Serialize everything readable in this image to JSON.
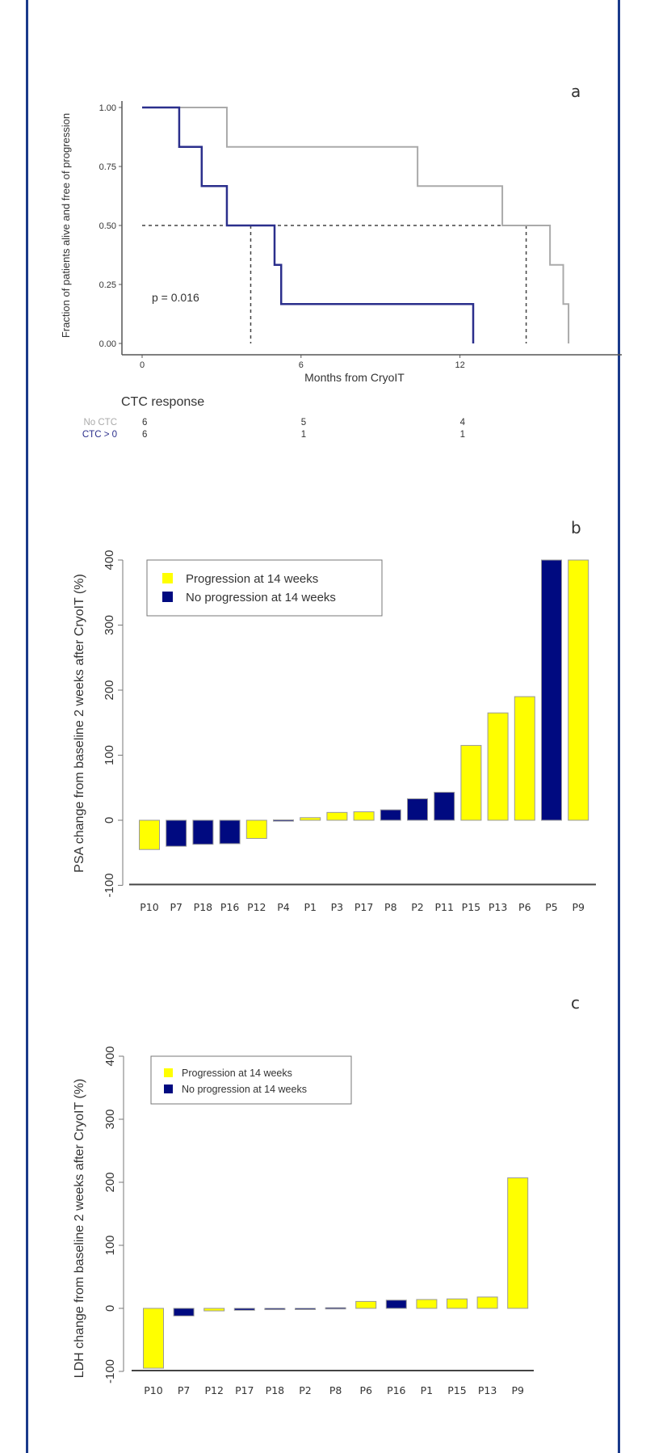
{
  "colors": {
    "frame": "#1a3a8a",
    "no_ctc_curve": "#aaaaaa",
    "ctc_curve": "#2b2f8c",
    "progression": "#ffff00",
    "no_progression": "#000a80",
    "bar_border": "#999999"
  },
  "chart_data": [
    {
      "panel": "a",
      "type": "line",
      "subtype": "kaplan-meier step",
      "xlabel": "Months from CryoIT",
      "ylabel": "Fraction of patients alive and free of progression",
      "x_ticks": [
        "0",
        "6",
        "12"
      ],
      "y_ticks": [
        "0.00",
        "0.25",
        "0.50",
        "0.75",
        "1.00"
      ],
      "xlim": [
        0,
        16.5
      ],
      "ylim": [
        0,
        1
      ],
      "annotation": "p = 0.016",
      "median_line": 0.5,
      "medians": [
        4.1,
        14.5
      ],
      "series": [
        {
          "name": "No CTC",
          "color": "#aaaaaa",
          "steps": [
            [
              0,
              1.0
            ],
            [
              3.2,
              0.833
            ],
            [
              10.4,
              0.667
            ],
            [
              13.6,
              0.5
            ],
            [
              15.4,
              0.333
            ],
            [
              15.9,
              0.167
            ],
            [
              16.1,
              0.0
            ]
          ]
        },
        {
          "name": "CTC > 0",
          "color": "#2b2f8c",
          "steps": [
            [
              0,
              1.0
            ],
            [
              1.4,
              0.833
            ],
            [
              2.25,
              0.667
            ],
            [
              3.2,
              0.5
            ],
            [
              5.0,
              0.333
            ],
            [
              5.25,
              0.167
            ],
            [
              12.5,
              0.0
            ]
          ]
        }
      ],
      "risk_table": {
        "title": "CTC response",
        "times": [
          0,
          6,
          12
        ],
        "rows": [
          {
            "label": "No CTC",
            "values": [
              "6",
              "5",
              "4"
            ]
          },
          {
            "label": "CTC > 0",
            "values": [
              "6",
              "1",
              "1"
            ]
          }
        ]
      },
      "grid": false
    },
    {
      "panel": "b",
      "type": "bar",
      "ylabel": "PSA change from baseline 2 weeks after CryoIT (%)",
      "y_ticks": [
        "-100",
        "0",
        "100",
        "200",
        "300",
        "400"
      ],
      "ylim": [
        -100,
        400
      ],
      "legend": {
        "placement": "top-left",
        "entries": [
          "Progression at 14 weeks",
          "No progression at 14 weeks"
        ]
      },
      "categories": [
        "P10",
        "P7",
        "P18",
        "P16",
        "P12",
        "P4",
        "P1",
        "P3",
        "P17",
        "P8",
        "P2",
        "P11",
        "P15",
        "P13",
        "P6",
        "P5",
        "P9"
      ],
      "values": [
        -45,
        -40,
        -37,
        -36,
        -28,
        0.5,
        4,
        12,
        13,
        16,
        33,
        43,
        115,
        165,
        190,
        400,
        400
      ],
      "groups": [
        "progression",
        "no_progression",
        "no_progression",
        "no_progression",
        "progression",
        "no_progression",
        "progression",
        "progression",
        "progression",
        "no_progression",
        "no_progression",
        "no_progression",
        "progression",
        "progression",
        "progression",
        "no_progression",
        "progression"
      ],
      "grid": false
    },
    {
      "panel": "c",
      "type": "bar",
      "ylabel": "LDH change from baseline 2 weeks after CryoIT (%)",
      "y_ticks": [
        "-100",
        "0",
        "100",
        "200",
        "300",
        "400"
      ],
      "ylim": [
        -100,
        400
      ],
      "legend": {
        "placement": "top-left",
        "entries": [
          "Progression at 14 weeks",
          "No progression at 14 weeks"
        ]
      },
      "categories": [
        "P10",
        "P7",
        "P12",
        "P17",
        "P18",
        "P2",
        "P8",
        "P6",
        "P16",
        "P1",
        "P15",
        "P13",
        "P9"
      ],
      "values": [
        -95,
        -12,
        -4,
        -3,
        -2,
        -0.5,
        1,
        11,
        13,
        14,
        15,
        18,
        207
      ],
      "groups": [
        "progression",
        "no_progression",
        "progression",
        "no_progression",
        "no_progression",
        "no_progression",
        "no_progression",
        "progression",
        "no_progression",
        "progression",
        "progression",
        "progression",
        "progression"
      ],
      "grid": false
    }
  ]
}
